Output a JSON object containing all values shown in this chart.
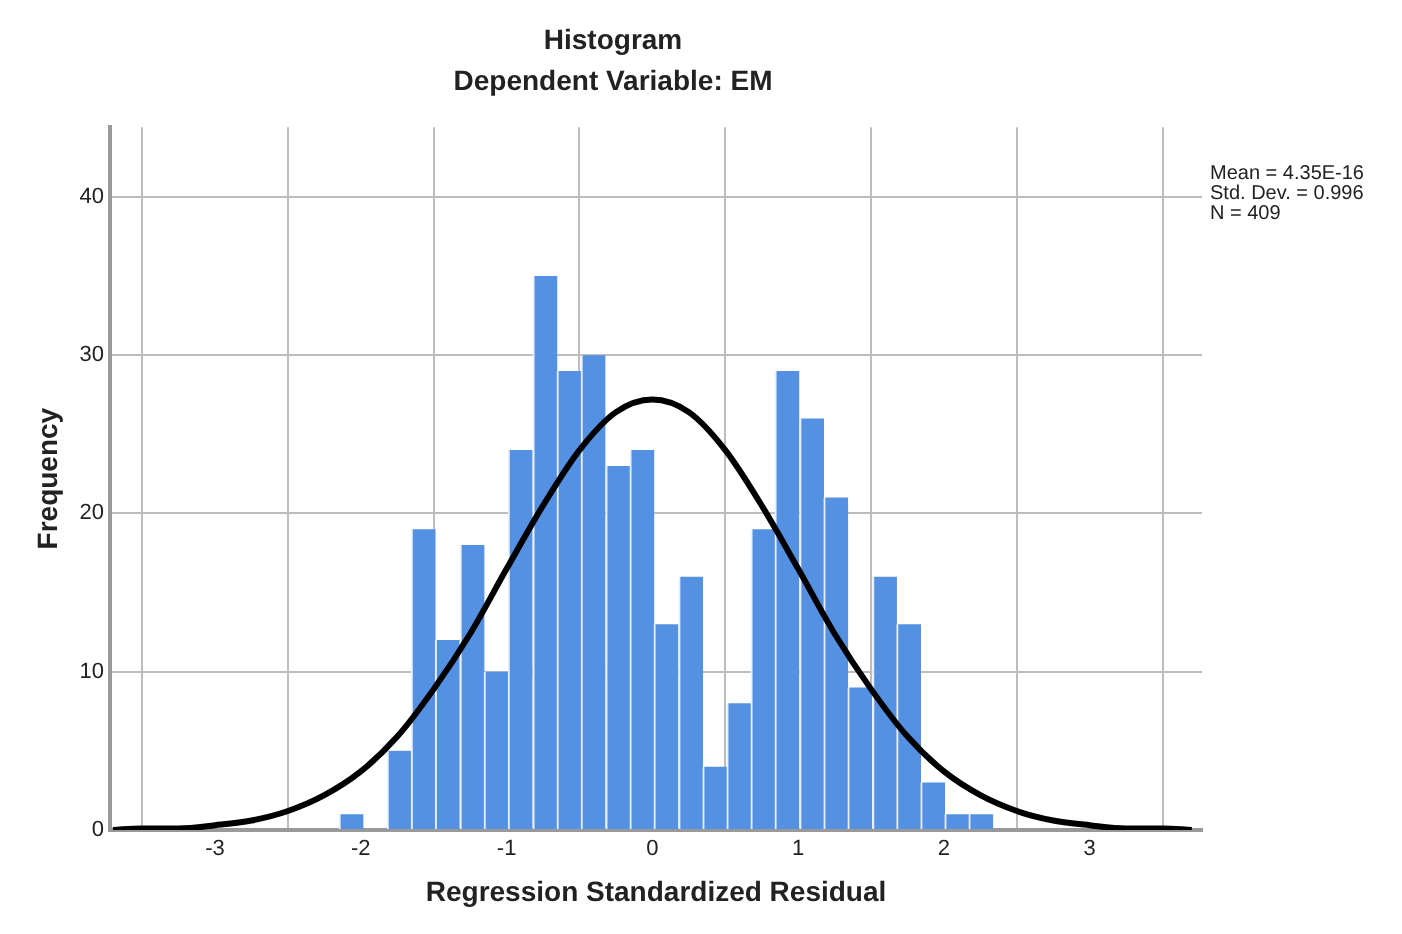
{
  "chart_data": {
    "type": "histogram",
    "title": "Histogram",
    "subtitle": "Dependent Variable: EM",
    "xlabel": "Regression Standardized Residual",
    "ylabel": "Frequency",
    "annotations": [
      "Mean = 4.35E-16\nStd. Dev. = 0.996\nN = 409"
    ],
    "bins": [
      -2.15,
      -1.98,
      -1.82,
      -1.65,
      -1.49,
      -1.32,
      -1.15,
      -0.99,
      -0.82,
      -0.65,
      -0.49,
      -0.32,
      -0.15,
      0.01,
      0.18,
      0.35,
      0.51,
      0.68,
      0.84,
      1.01,
      1.18,
      1.34,
      1.51,
      1.68,
      1.84,
      2.01,
      2.17,
      2.34
    ],
    "series": [
      {
        "type": "histogram",
        "color": "#5591e3",
        "values": [
          1,
          0,
          5,
          19,
          12,
          18,
          10,
          24,
          35,
          29,
          30,
          23,
          24,
          13,
          16,
          4,
          8,
          19,
          29,
          26,
          21,
          9,
          16,
          13,
          3,
          1,
          1
        ]
      },
      {
        "type": "line",
        "color": "#000000",
        "x": [
          -3.7,
          -3.5,
          -3.25,
          -3,
          -2.75,
          -2.5,
          -2.25,
          -2,
          -1.75,
          -1.5,
          -1.25,
          -1,
          -0.75,
          -0.5,
          -0.25,
          0,
          0.25,
          0.5,
          0.75,
          1,
          1.25,
          1.5,
          1.75,
          2,
          2.25,
          2.5,
          2.75,
          3,
          3.25,
          3.5,
          3.7
        ],
        "values": [
          0,
          0.1,
          0.1,
          0.3,
          0.6,
          1.2,
          2.2,
          3.7,
          5.9,
          8.9,
          12.4,
          16.5,
          20.5,
          24,
          26.4,
          27.2,
          26.4,
          24,
          20.5,
          16.5,
          12.4,
          8.9,
          5.9,
          3.7,
          2.2,
          1.2,
          0.6,
          0.3,
          0.1,
          0.1,
          0
        ]
      }
    ],
    "xlim": [
      -3.72,
      3.77
    ],
    "xticks": [
      -3,
      -2,
      -1,
      0,
      1,
      2,
      3
    ],
    "ylim": [
      0,
      44.4
    ],
    "yticks": [
      0,
      10,
      20,
      30,
      40
    ],
    "grid": true,
    "legend": false
  }
}
